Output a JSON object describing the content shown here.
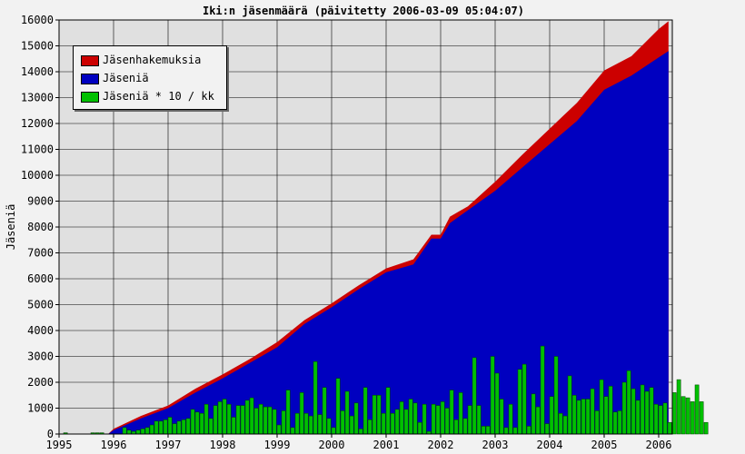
{
  "chart_data": {
    "type": "area",
    "title": "Iki:n jäsenmäärä (päivitetty 2006-03-09 05:04:07)",
    "xlabel": "",
    "ylabel": "Jäseniä",
    "xlim": [
      1995.0,
      2006.25
    ],
    "ylim": [
      0,
      16000
    ],
    "yticks": [
      0,
      1000,
      2000,
      3000,
      4000,
      5000,
      6000,
      7000,
      8000,
      9000,
      10000,
      11000,
      12000,
      13000,
      14000,
      15000,
      16000
    ],
    "xticks": [
      "1995",
      "1996",
      "1997",
      "1998",
      "1999",
      "2000",
      "2001",
      "2002",
      "2003",
      "2004",
      "2005",
      "2006"
    ],
    "grid": true,
    "legend_position": "top-left",
    "series": [
      {
        "name": "Jäsenhakemuksia",
        "color": "#cc0000",
        "x": [
          1995.9,
          1996.0,
          1996.5,
          1997.0,
          1997.5,
          1998.0,
          1998.5,
          1999.0,
          1999.5,
          2000.0,
          2000.5,
          2001.0,
          2001.5,
          2001.83,
          2002.0,
          2002.17,
          2002.5,
          2003.0,
          2003.5,
          2004.0,
          2004.5,
          2005.0,
          2005.5,
          2006.0,
          2006.18
        ],
        "values": [
          0,
          200,
          700,
          1100,
          1750,
          2300,
          2900,
          3550,
          4400,
          5050,
          5750,
          6400,
          6750,
          7700,
          7700,
          8400,
          8800,
          9750,
          10800,
          11800,
          12800,
          14050,
          14600,
          15650,
          15950
        ]
      },
      {
        "name": "Jäseniä",
        "color": "#0000c0",
        "x": [
          1995.9,
          1996.0,
          1996.5,
          1997.0,
          1997.5,
          1998.0,
          1998.5,
          1999.0,
          1999.5,
          2000.0,
          2000.5,
          2001.0,
          2001.5,
          2001.83,
          2002.0,
          2002.17,
          2002.5,
          2003.0,
          2003.5,
          2004.0,
          2004.5,
          2005.0,
          2005.5,
          2006.0,
          2006.18
        ],
        "values": [
          0,
          150,
          600,
          1000,
          1600,
          2150,
          2750,
          3350,
          4250,
          4900,
          5600,
          6250,
          6550,
          7550,
          7550,
          8150,
          8650,
          9400,
          10300,
          11200,
          12100,
          13300,
          13850,
          14550,
          14800
        ]
      },
      {
        "name": "Jäseniä * 10 / kk",
        "color": "#00c000",
        "type": "bar",
        "x_start": 1995.0,
        "bar_step": 0.08333,
        "values": [
          0,
          50,
          0,
          0,
          0,
          0,
          0,
          50,
          50,
          50,
          0,
          0,
          0,
          0,
          250,
          150,
          100,
          150,
          200,
          250,
          350,
          500,
          500,
          550,
          650,
          400,
          500,
          550,
          600,
          950,
          850,
          800,
          1150,
          600,
          1100,
          1250,
          1350,
          1150,
          650,
          1100,
          1100,
          1300,
          1400,
          1000,
          1150,
          1050,
          1050,
          950,
          350,
          900,
          1700,
          250,
          800,
          1600,
          800,
          700,
          2800,
          750,
          1800,
          600,
          250,
          2150,
          900,
          1650,
          700,
          1200,
          200,
          1800,
          550,
          1500,
          1500,
          800,
          1800,
          800,
          950,
          1250,
          950,
          1350,
          1200,
          450,
          1150,
          100,
          1150,
          1100,
          1250,
          1000,
          1700,
          550,
          1600,
          600,
          1100,
          2950,
          1100,
          300,
          300,
          3000,
          2350,
          1350,
          250,
          1150,
          250,
          2500,
          2700,
          300,
          1550,
          1050,
          3400,
          400,
          1450,
          3000,
          800,
          700,
          2250,
          1500,
          1300,
          1350,
          1350,
          1750,
          900,
          2100,
          1450,
          1850,
          850,
          900,
          2000,
          2450,
          1750,
          1300,
          1900,
          1650,
          1800,
          1150,
          1100,
          1200,
          450,
          1600,
          2100,
          1450,
          1400,
          1250,
          1900,
          1250,
          450
        ]
      }
    ]
  }
}
